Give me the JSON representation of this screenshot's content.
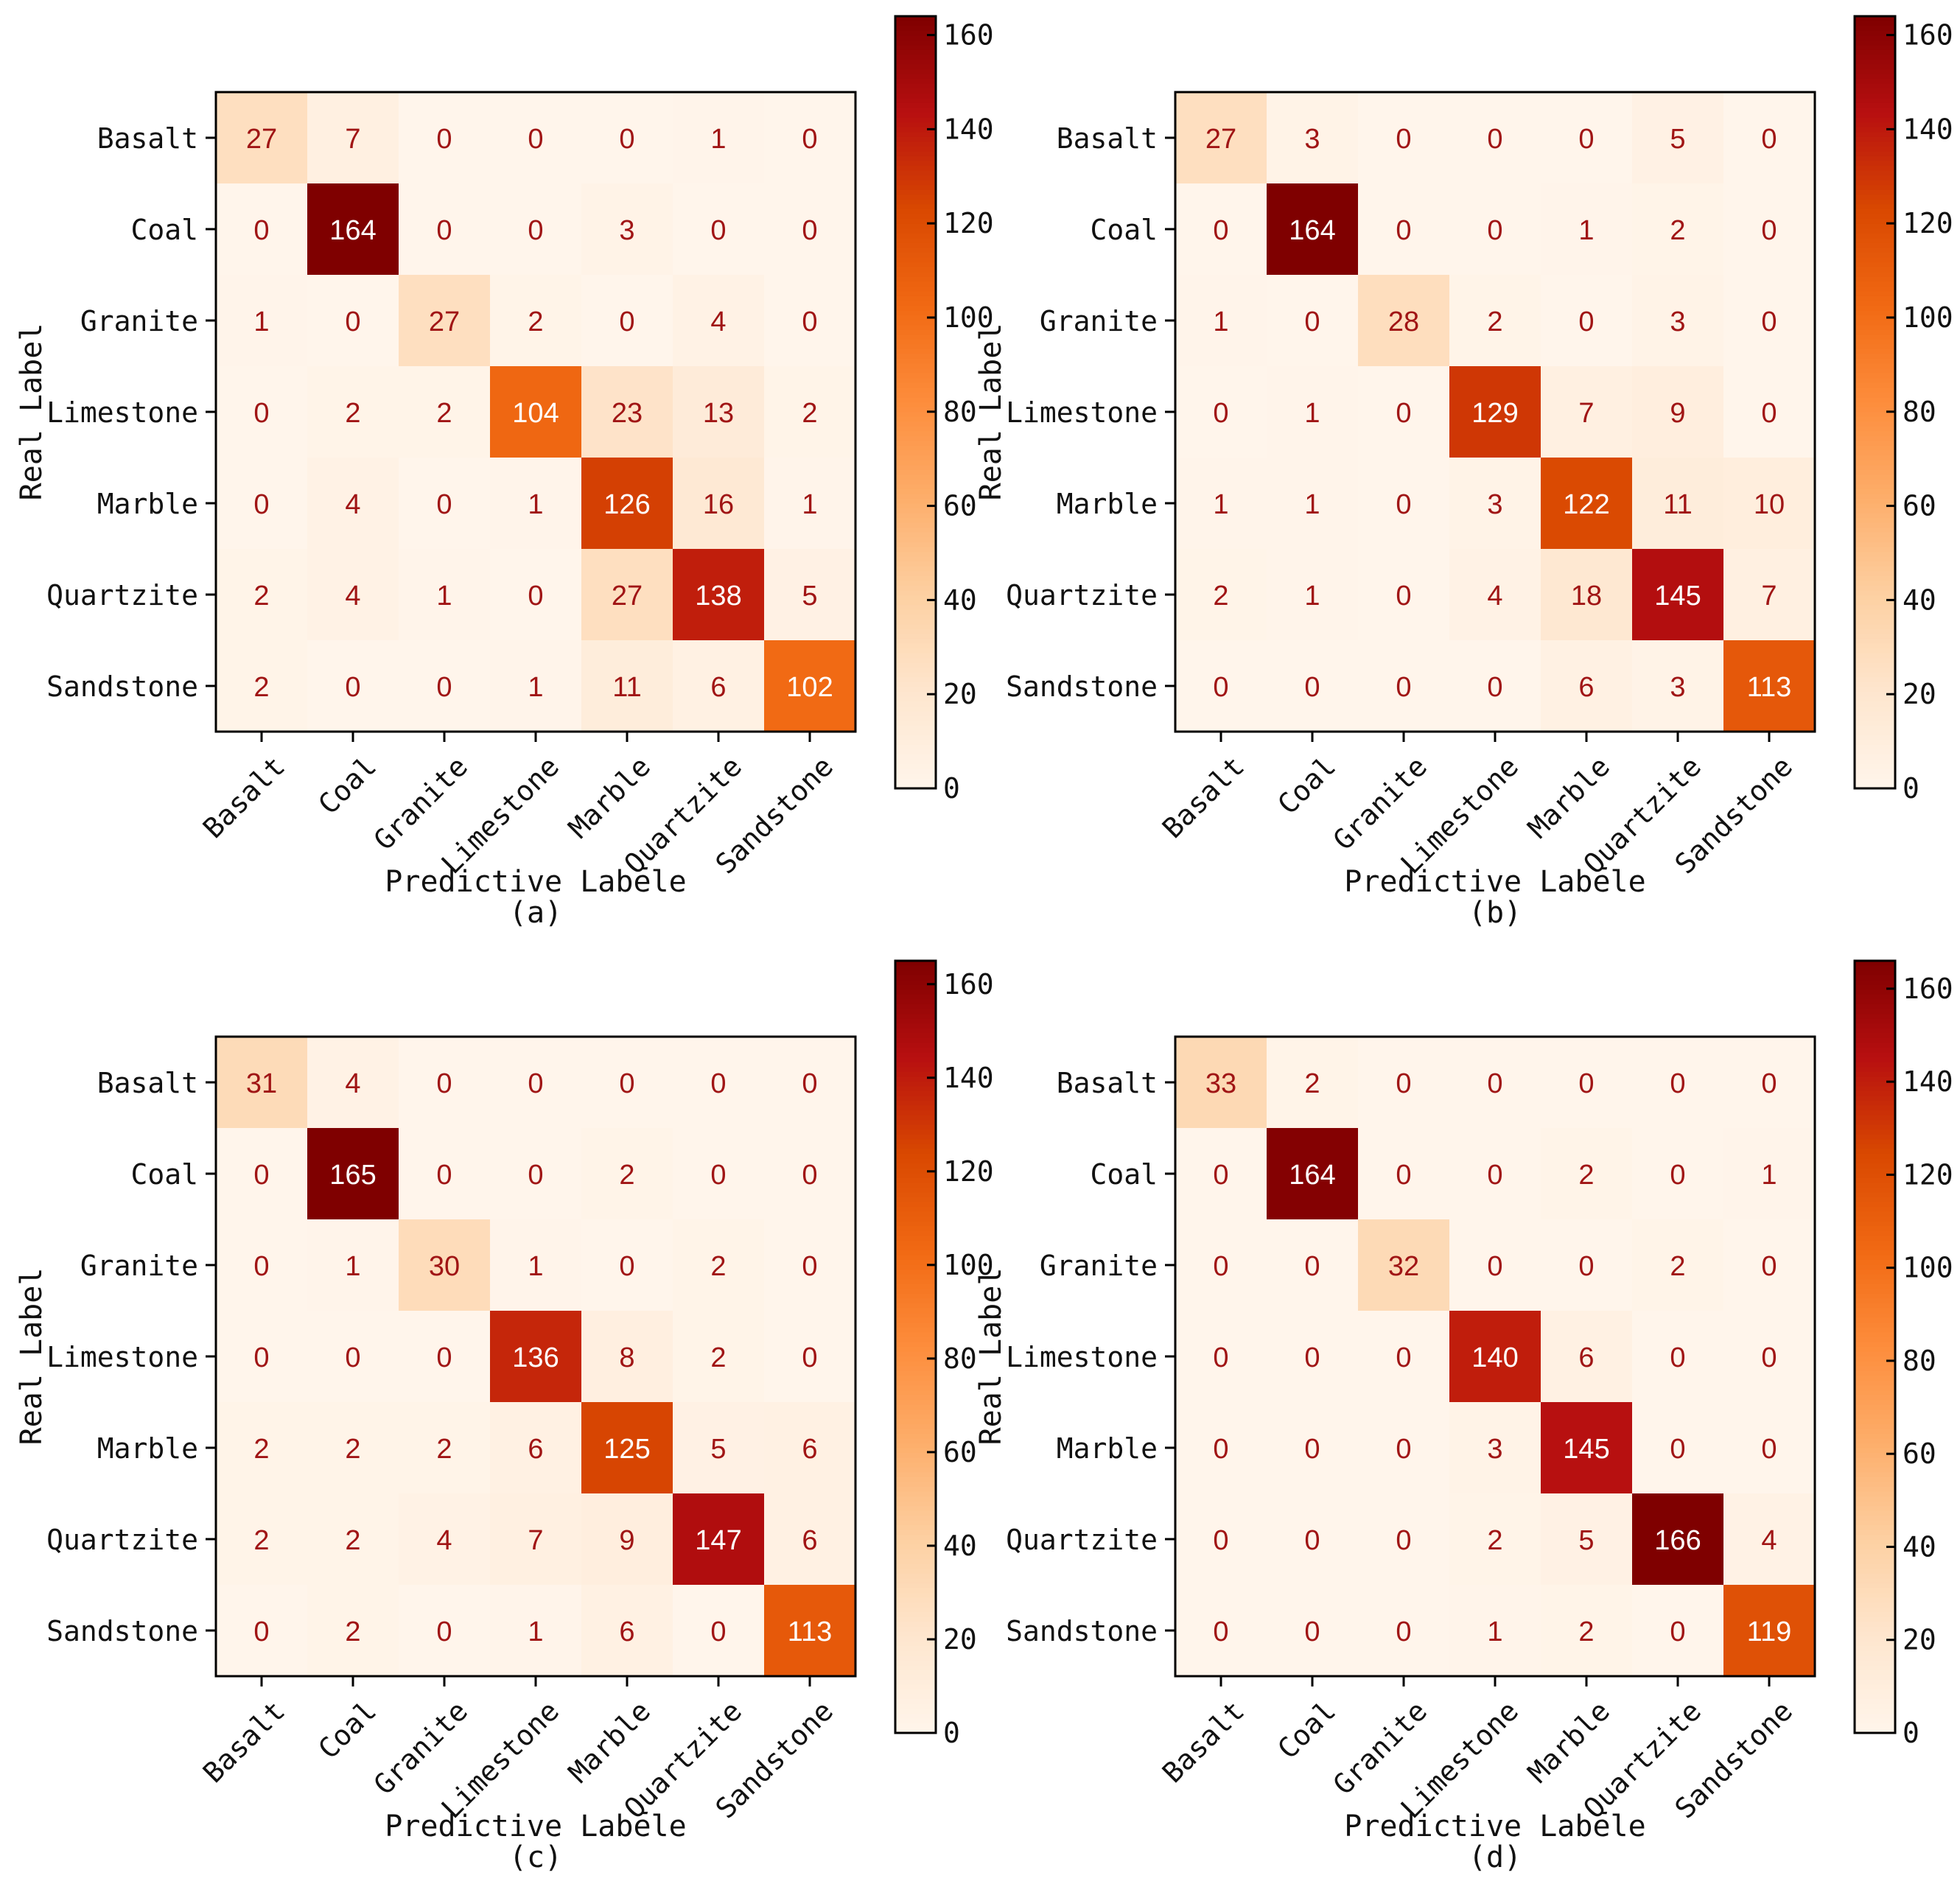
{
  "chart_data": [
    {
      "type": "heatmap",
      "panel_label": "(a)",
      "xlabel": "Predictive Labele",
      "ylabel": "Real Label",
      "x_categories": [
        "Basalt",
        "Coal",
        "Granite",
        "Limestone",
        "Marble",
        "Quartzite",
        "Sandstone"
      ],
      "y_categories": [
        "Basalt",
        "Coal",
        "Granite",
        "Limestone",
        "Marble",
        "Quartzite",
        "Sandstone"
      ],
      "values": [
        [
          27,
          7,
          0,
          0,
          0,
          1,
          0
        ],
        [
          0,
          164,
          0,
          0,
          3,
          0,
          0
        ],
        [
          1,
          0,
          27,
          2,
          0,
          4,
          0
        ],
        [
          0,
          2,
          2,
          104,
          23,
          13,
          2
        ],
        [
          0,
          4,
          0,
          1,
          126,
          16,
          1
        ],
        [
          2,
          4,
          1,
          0,
          27,
          138,
          5
        ],
        [
          2,
          0,
          0,
          1,
          11,
          6,
          102
        ]
      ],
      "colorbar": {
        "min": 0,
        "max": 164,
        "ticks": [
          0,
          20,
          40,
          60,
          80,
          100,
          120,
          140,
          160
        ]
      }
    },
    {
      "type": "heatmap",
      "panel_label": "(b)",
      "xlabel": "Predictive Labele",
      "ylabel": "Real Label",
      "x_categories": [
        "Basalt",
        "Coal",
        "Granite",
        "Limestone",
        "Marble",
        "Quartzite",
        "Sandstone"
      ],
      "y_categories": [
        "Basalt",
        "Coal",
        "Granite",
        "Limestone",
        "Marble",
        "Quartzite",
        "Sandstone"
      ],
      "values": [
        [
          27,
          3,
          0,
          0,
          0,
          5,
          0
        ],
        [
          0,
          164,
          0,
          0,
          1,
          2,
          0
        ],
        [
          1,
          0,
          28,
          2,
          0,
          3,
          0
        ],
        [
          0,
          1,
          0,
          129,
          7,
          9,
          0
        ],
        [
          1,
          1,
          0,
          3,
          122,
          11,
          10
        ],
        [
          2,
          1,
          0,
          4,
          18,
          145,
          7
        ],
        [
          0,
          0,
          0,
          0,
          6,
          3,
          113
        ]
      ],
      "colorbar": {
        "min": 0,
        "max": 164,
        "ticks": [
          0,
          20,
          40,
          60,
          80,
          100,
          120,
          140,
          160
        ]
      }
    },
    {
      "type": "heatmap",
      "panel_label": "(c)",
      "xlabel": "Predictive Labele",
      "ylabel": "Real Label",
      "x_categories": [
        "Basalt",
        "Coal",
        "Granite",
        "Limestone",
        "Marble",
        "Quartzite",
        "Sandstone"
      ],
      "y_categories": [
        "Basalt",
        "Coal",
        "Granite",
        "Limestone",
        "Marble",
        "Quartzite",
        "Sandstone"
      ],
      "values": [
        [
          31,
          4,
          0,
          0,
          0,
          0,
          0
        ],
        [
          0,
          165,
          0,
          0,
          2,
          0,
          0
        ],
        [
          0,
          1,
          30,
          1,
          0,
          2,
          0
        ],
        [
          0,
          0,
          0,
          136,
          8,
          2,
          0
        ],
        [
          2,
          2,
          2,
          6,
          125,
          5,
          6
        ],
        [
          2,
          2,
          4,
          7,
          9,
          147,
          6
        ],
        [
          0,
          2,
          0,
          1,
          6,
          0,
          113
        ]
      ],
      "colorbar": {
        "min": 0,
        "max": 165,
        "ticks": [
          0,
          20,
          40,
          60,
          80,
          100,
          120,
          140,
          160
        ]
      }
    },
    {
      "type": "heatmap",
      "panel_label": "(d)",
      "xlabel": "Predictive Labele",
      "ylabel": "Real Label",
      "x_categories": [
        "Basalt",
        "Coal",
        "Granite",
        "Limestone",
        "Marble",
        "Quartzite",
        "Sandstone"
      ],
      "y_categories": [
        "Basalt",
        "Coal",
        "Granite",
        "Limestone",
        "Marble",
        "Quartzite",
        "Sandstone"
      ],
      "values": [
        [
          33,
          2,
          0,
          0,
          0,
          0,
          0
        ],
        [
          0,
          164,
          0,
          0,
          2,
          0,
          1
        ],
        [
          0,
          0,
          32,
          0,
          0,
          2,
          0
        ],
        [
          0,
          0,
          0,
          140,
          6,
          0,
          0
        ],
        [
          0,
          0,
          0,
          3,
          145,
          0,
          0
        ],
        [
          0,
          0,
          0,
          2,
          5,
          166,
          4
        ],
        [
          0,
          0,
          0,
          1,
          2,
          0,
          119
        ]
      ],
      "colorbar": {
        "min": 0,
        "max": 166,
        "ticks": [
          0,
          20,
          40,
          60,
          80,
          100,
          120,
          140,
          160
        ]
      }
    }
  ],
  "colors": {
    "scale": [
      "#fff5eb",
      "#fee6ce",
      "#fdd0a2",
      "#fdae6b",
      "#fd8d3c",
      "#f16913",
      "#d94801",
      "#b70f10",
      "#7f0000"
    ],
    "low_value_text": "#a01515",
    "high_value_text": "#ffffff"
  }
}
